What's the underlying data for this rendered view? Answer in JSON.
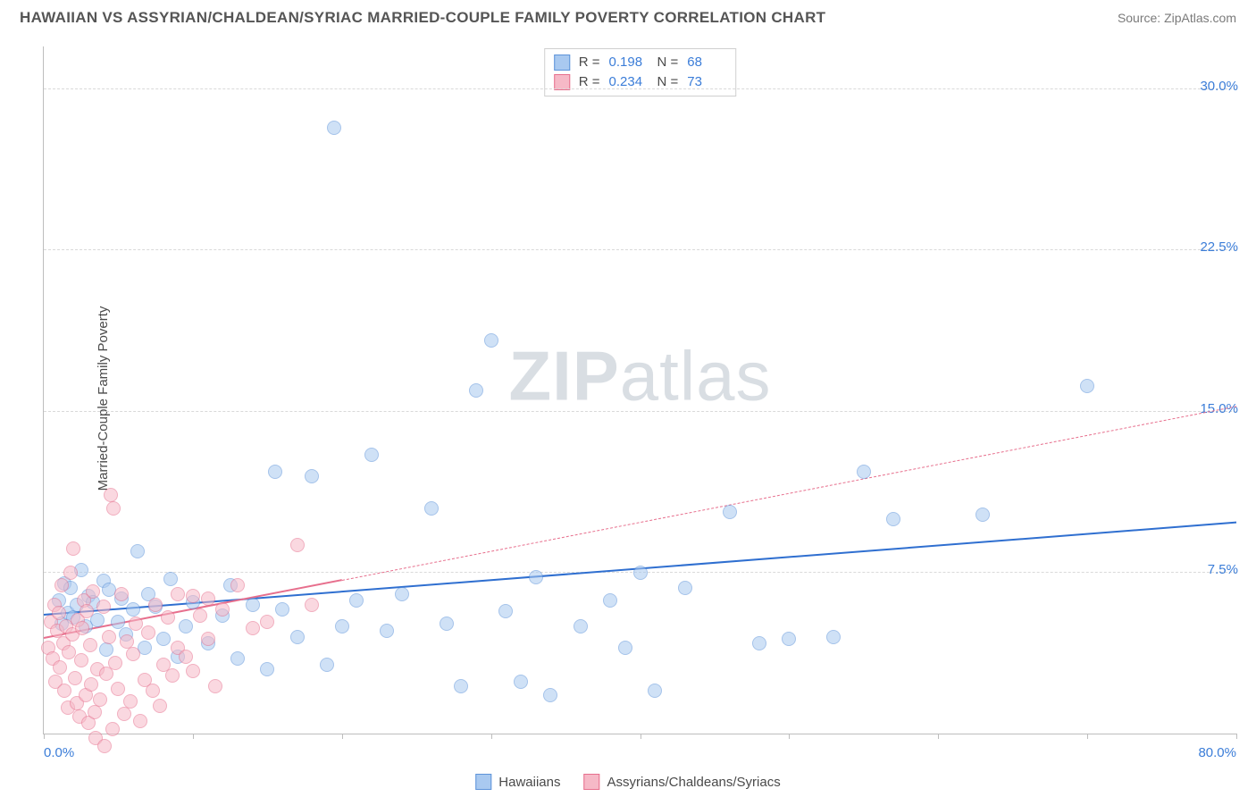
{
  "header": {
    "title": "HAWAIIAN VS ASSYRIAN/CHALDEAN/SYRIAC MARRIED-COUPLE FAMILY POVERTY CORRELATION CHART",
    "source": "Source: ZipAtlas.com"
  },
  "watermark": {
    "left": "ZIP",
    "right": "atlas"
  },
  "chart": {
    "type": "scatter",
    "xlim": [
      0,
      80
    ],
    "ylim": [
      0,
      32
    ],
    "x_min_label": "0.0%",
    "x_max_label": "80.0%",
    "y_ticks": [
      {
        "v": 7.5,
        "label": "7.5%"
      },
      {
        "v": 15.0,
        "label": "15.0%"
      },
      {
        "v": 22.5,
        "label": "22.5%"
      },
      {
        "v": 30.0,
        "label": "30.0%"
      }
    ],
    "x_tick_step": 10,
    "ylabel": "Married-Couple Family Poverty",
    "grid_color": "#d9d9d9",
    "axis_color": "#bdbdbd",
    "background_color": "#ffffff",
    "marker_radius": 8,
    "marker_stroke_width": 1.2,
    "label_fontsize": 15,
    "series": [
      {
        "name": "Hawaiians",
        "fill": "#a9c9f0",
        "stroke": "#5d93d9",
        "fill_opacity": 0.55,
        "r": 0.198,
        "n": 68,
        "trend": {
          "x1": 0,
          "y1": 5.5,
          "x2": 80,
          "y2": 9.8,
          "color": "#2f6fd0",
          "width": 2.2,
          "dash": false,
          "x_solid_end": 80
        },
        "points": [
          [
            1,
            6.2
          ],
          [
            1.2,
            5.1
          ],
          [
            1.4,
            7.0
          ],
          [
            1.6,
            5.6
          ],
          [
            1.8,
            6.8
          ],
          [
            2,
            5.4
          ],
          [
            2.2,
            6.0
          ],
          [
            2.5,
            7.6
          ],
          [
            2.8,
            5.0
          ],
          [
            3,
            6.4
          ],
          [
            3.3,
            6.1
          ],
          [
            3.6,
            5.3
          ],
          [
            4,
            7.1
          ],
          [
            4.2,
            3.9
          ],
          [
            4.4,
            6.7
          ],
          [
            5,
            5.2
          ],
          [
            5.2,
            6.3
          ],
          [
            5.5,
            4.6
          ],
          [
            6,
            5.8
          ],
          [
            6.3,
            8.5
          ],
          [
            7,
            6.5
          ],
          [
            7.5,
            5.9
          ],
          [
            8,
            4.4
          ],
          [
            8.5,
            7.2
          ],
          [
            9,
            3.6
          ],
          [
            9.5,
            5.0
          ],
          [
            10,
            6.1
          ],
          [
            11,
            4.2
          ],
          [
            12,
            5.5
          ],
          [
            12.5,
            6.9
          ],
          [
            13,
            3.5
          ],
          [
            14,
            6.0
          ],
          [
            15,
            3.0
          ],
          [
            15.5,
            12.2
          ],
          [
            16,
            5.8
          ],
          [
            17,
            4.5
          ],
          [
            18,
            12.0
          ],
          [
            19,
            3.2
          ],
          [
            19.5,
            28.2
          ],
          [
            20,
            5.0
          ],
          [
            21,
            6.2
          ],
          [
            22,
            13.0
          ],
          [
            23,
            4.8
          ],
          [
            24,
            6.5
          ],
          [
            26,
            10.5
          ],
          [
            27,
            5.1
          ],
          [
            28,
            2.2
          ],
          [
            29,
            16.0
          ],
          [
            30,
            18.3
          ],
          [
            31,
            5.7
          ],
          [
            32,
            2.4
          ],
          [
            33,
            7.3
          ],
          [
            34,
            1.8
          ],
          [
            36,
            5.0
          ],
          [
            38,
            6.2
          ],
          [
            39,
            4.0
          ],
          [
            40,
            7.5
          ],
          [
            41,
            2.0
          ],
          [
            43,
            6.8
          ],
          [
            46,
            10.3
          ],
          [
            48,
            4.2
          ],
          [
            50,
            4.4
          ],
          [
            53,
            4.5
          ],
          [
            55,
            12.2
          ],
          [
            57,
            10.0
          ],
          [
            63,
            10.2
          ],
          [
            70,
            16.2
          ],
          [
            6.8,
            4.0
          ]
        ]
      },
      {
        "name": "Assyrians/Chaldeans/Syriacs",
        "fill": "#f6b9c7",
        "stroke": "#e76f8d",
        "fill_opacity": 0.55,
        "r": 0.234,
        "n": 73,
        "trend": {
          "x1": 0,
          "y1": 4.4,
          "x2": 80,
          "y2": 15.2,
          "color": "#e76f8d",
          "width": 2.0,
          "dash": true,
          "x_solid_end": 20
        },
        "points": [
          [
            0.3,
            4.0
          ],
          [
            0.5,
            5.2
          ],
          [
            0.6,
            3.5
          ],
          [
            0.7,
            6.0
          ],
          [
            0.8,
            2.4
          ],
          [
            0.9,
            4.8
          ],
          [
            1.0,
            5.6
          ],
          [
            1.1,
            3.1
          ],
          [
            1.2,
            6.9
          ],
          [
            1.3,
            4.2
          ],
          [
            1.4,
            2.0
          ],
          [
            1.5,
            5.0
          ],
          [
            1.6,
            1.2
          ],
          [
            1.7,
            3.8
          ],
          [
            1.8,
            7.5
          ],
          [
            1.9,
            4.6
          ],
          [
            2.0,
            8.6
          ],
          [
            2.1,
            2.6
          ],
          [
            2.2,
            1.4
          ],
          [
            2.3,
            5.3
          ],
          [
            2.4,
            0.8
          ],
          [
            2.5,
            3.4
          ],
          [
            2.6,
            4.9
          ],
          [
            2.7,
            6.2
          ],
          [
            2.8,
            1.8
          ],
          [
            2.9,
            5.7
          ],
          [
            3.0,
            0.5
          ],
          [
            3.1,
            4.1
          ],
          [
            3.2,
            2.3
          ],
          [
            3.3,
            6.6
          ],
          [
            3.4,
            1.0
          ],
          [
            3.5,
            -0.2
          ],
          [
            3.6,
            3.0
          ],
          [
            3.8,
            1.6
          ],
          [
            4.0,
            5.9
          ],
          [
            4.1,
            -0.6
          ],
          [
            4.2,
            2.8
          ],
          [
            4.4,
            4.5
          ],
          [
            4.5,
            11.1
          ],
          [
            4.7,
            10.5
          ],
          [
            4.6,
            0.2
          ],
          [
            4.8,
            3.3
          ],
          [
            5.0,
            2.1
          ],
          [
            5.2,
            6.5
          ],
          [
            5.4,
            0.9
          ],
          [
            5.6,
            4.3
          ],
          [
            5.8,
            1.5
          ],
          [
            6.0,
            3.7
          ],
          [
            6.2,
            5.1
          ],
          [
            6.5,
            0.6
          ],
          [
            6.8,
            2.5
          ],
          [
            7.0,
            4.7
          ],
          [
            7.3,
            2.0
          ],
          [
            7.5,
            6.0
          ],
          [
            7.8,
            1.3
          ],
          [
            8.0,
            3.2
          ],
          [
            8.3,
            5.4
          ],
          [
            8.6,
            2.7
          ],
          [
            9.0,
            4.0
          ],
          [
            9.0,
            6.5
          ],
          [
            9.5,
            3.6
          ],
          [
            10.0,
            6.4
          ],
          [
            10.0,
            2.9
          ],
          [
            10.5,
            5.5
          ],
          [
            11.0,
            4.4
          ],
          [
            11.0,
            6.3
          ],
          [
            11.5,
            2.2
          ],
          [
            12.0,
            5.8
          ],
          [
            13.0,
            6.9
          ],
          [
            14.0,
            4.9
          ],
          [
            15.0,
            5.2
          ],
          [
            17.0,
            8.8
          ],
          [
            18.0,
            6.0
          ]
        ]
      }
    ]
  },
  "legend_bottom": [
    {
      "label": "Hawaiians",
      "fill": "#a9c9f0",
      "stroke": "#5d93d9"
    },
    {
      "label": "Assyrians/Chaldeans/Syriacs",
      "fill": "#f6b9c7",
      "stroke": "#e76f8d"
    }
  ]
}
